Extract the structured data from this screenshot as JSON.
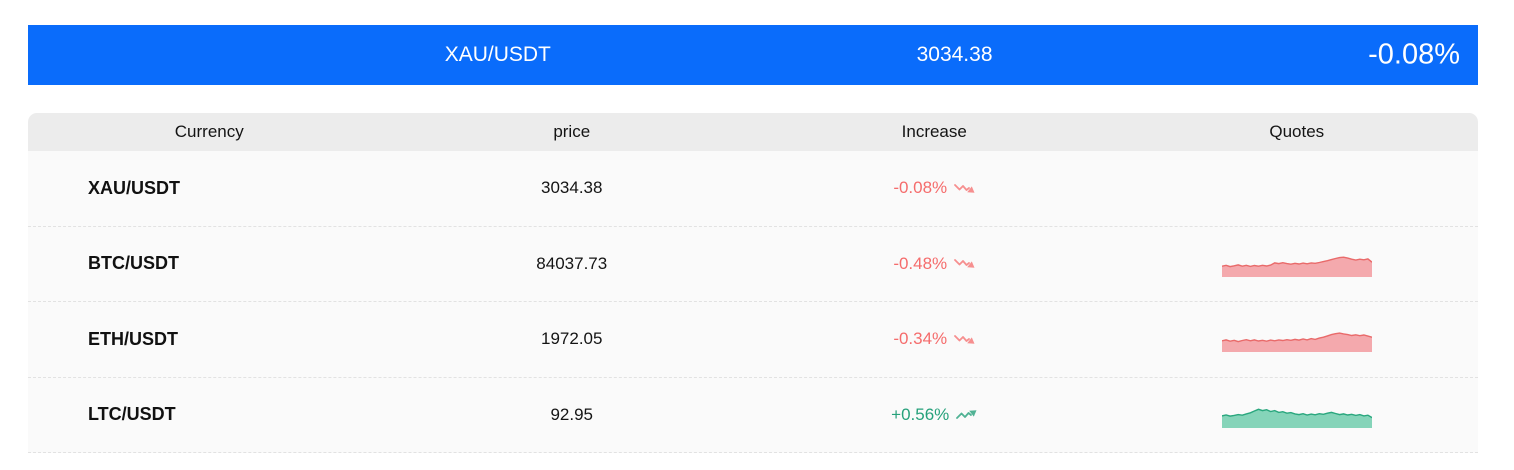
{
  "banner": {
    "pair": "XAU/USDT",
    "price": "3034.38",
    "change": "-0.08%"
  },
  "table": {
    "headers": [
      "Currency",
      "price",
      "Increase",
      "Quotes"
    ],
    "rows": [
      {
        "currency": "XAU/USDT",
        "price": "3034.38",
        "change": "-0.08%",
        "direction": "down",
        "icon": "trend-down-icon",
        "sparkline": null
      },
      {
        "currency": "BTC/USDT",
        "price": "84037.73",
        "change": "-0.48%",
        "direction": "down",
        "icon": "trend-down-icon",
        "sparkline": [
          0.4,
          0.44,
          0.38,
          0.42,
          0.46,
          0.4,
          0.44,
          0.39,
          0.43,
          0.4,
          0.44,
          0.41,
          0.45,
          0.55,
          0.52,
          0.56,
          0.52,
          0.49,
          0.53,
          0.5,
          0.54,
          0.51,
          0.55,
          0.53,
          0.57,
          0.61,
          0.65,
          0.7,
          0.75,
          0.79,
          0.81,
          0.77,
          0.72,
          0.68,
          0.72,
          0.69,
          0.73,
          0.58
        ]
      },
      {
        "currency": "ETH/USDT",
        "price": "1972.05",
        "change": "-0.34%",
        "direction": "down",
        "icon": "trend-down-icon",
        "sparkline": [
          0.42,
          0.46,
          0.4,
          0.44,
          0.38,
          0.43,
          0.47,
          0.42,
          0.46,
          0.41,
          0.44,
          0.4,
          0.45,
          0.42,
          0.46,
          0.43,
          0.47,
          0.44,
          0.48,
          0.45,
          0.5,
          0.46,
          0.52,
          0.48,
          0.54,
          0.58,
          0.64,
          0.7,
          0.74,
          0.77,
          0.73,
          0.7,
          0.66,
          0.69,
          0.65,
          0.68,
          0.63,
          0.58
        ]
      },
      {
        "currency": "LTC/USDT",
        "price": "92.95",
        "change": "+0.56%",
        "direction": "up",
        "icon": "trend-up-icon",
        "sparkline": [
          0.46,
          0.5,
          0.45,
          0.48,
          0.52,
          0.49,
          0.55,
          0.6,
          0.68,
          0.76,
          0.7,
          0.74,
          0.66,
          0.7,
          0.62,
          0.65,
          0.58,
          0.61,
          0.55,
          0.52,
          0.56,
          0.5,
          0.54,
          0.51,
          0.56,
          0.53,
          0.58,
          0.62,
          0.57,
          0.52,
          0.55,
          0.5,
          0.53,
          0.48,
          0.52,
          0.46,
          0.49,
          0.38
        ]
      }
    ]
  },
  "colors": {
    "banner_bg": "#0a6cfb",
    "header_bg": "#ececec",
    "down": {
      "text": "#f56c6c",
      "fill": "#f4a9ad",
      "stroke": "#e96a6a"
    },
    "up": {
      "text": "#26a17b",
      "fill": "#85d4b9",
      "stroke": "#2aa77e"
    }
  }
}
